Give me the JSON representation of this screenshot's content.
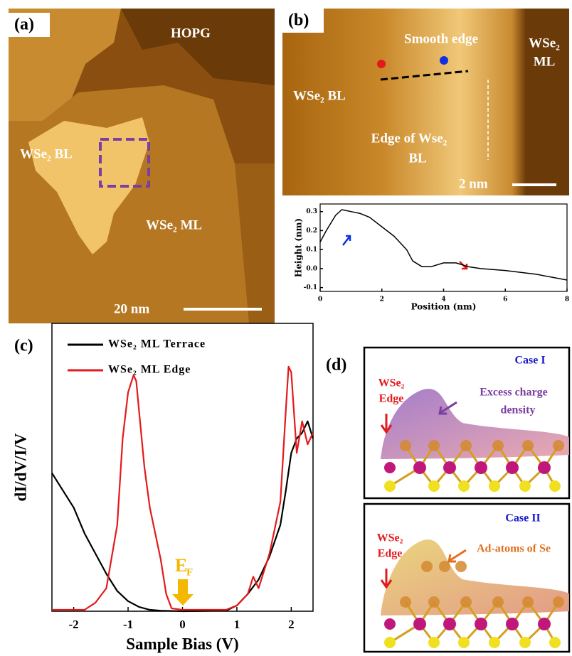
{
  "panel_a": {
    "label": "(a)",
    "hopg": "HOPG",
    "bilayer": "WSe₂ BL",
    "monolayer": "WSe₂ ML",
    "scale_bar": "20 nm"
  },
  "panel_b": {
    "label": "(b)",
    "smooth_edge": "Smooth edge",
    "monolayer": [
      "WSe₂",
      "ML"
    ],
    "bilayer": "WSe₂ BL",
    "edge": [
      "Edge of Wse₂",
      "BL"
    ],
    "scale_bar": "2 nm"
  },
  "chart_data": [
    {
      "type": "line",
      "xlabel": "Position (nm)",
      "ylabel": "Height (nm)",
      "color": "#000000",
      "x": [
        0,
        0.2,
        0.5,
        0.7,
        1.0,
        1.3,
        1.6,
        2.0,
        2.4,
        2.8,
        3.0,
        3.3,
        3.6,
        4.0,
        4.4,
        4.8,
        5.2,
        6.0,
        7.0,
        8.0
      ],
      "values": [
        0.14,
        0.2,
        0.28,
        0.31,
        0.3,
        0.29,
        0.27,
        0.22,
        0.17,
        0.1,
        0.04,
        0.01,
        0.01,
        0.03,
        0.03,
        0.01,
        0.0,
        -0.01,
        -0.03,
        -0.06
      ],
      "xlim": [
        0,
        8
      ],
      "xticks": [
        0,
        2,
        4,
        6,
        8
      ],
      "ylim": [
        -0.12,
        0.34
      ],
      "yticks": [
        -0.1,
        {
          "value": 0,
          "label": "0.0"
        },
        0.1,
        0.2,
        0.3
      ]
    },
    {
      "type": "line",
      "panel_label": "(c)",
      "xlabel": "Sample Bias (V)",
      "ylabel": "dI/dV/I/V",
      "xlim": [
        -2.4,
        2.4
      ],
      "xticks": [
        -2,
        -1,
        0,
        1,
        2
      ],
      "ylim": [
        0,
        1
      ],
      "annotation": {
        "text": "E",
        "subscript": "F"
      },
      "series": [
        {
          "name": "WSe₂ ML Terrace",
          "color": "#000000",
          "x": [
            -2.4,
            -2.2,
            -2.0,
            -1.8,
            -1.6,
            -1.4,
            -1.2,
            -1.0,
            -0.8,
            -0.6,
            -0.4,
            0,
            0.8,
            1.0,
            1.2,
            1.4,
            1.6,
            1.8,
            1.9,
            2.0,
            2.1,
            2.2,
            2.3,
            2.4
          ],
          "values": [
            0.48,
            0.42,
            0.36,
            0.27,
            0.2,
            0.13,
            0.07,
            0.035,
            0.015,
            0.005,
            0.002,
            0,
            0.002,
            0.02,
            0.06,
            0.11,
            0.19,
            0.3,
            0.42,
            0.55,
            0.6,
            0.62,
            0.66,
            0.6
          ]
        },
        {
          "name": "WSe₂ ML Edge",
          "color": "#e31a1c",
          "x": [
            -2.4,
            -1.8,
            -1.6,
            -1.4,
            -1.2,
            -1.1,
            -1.0,
            -0.9,
            -0.85,
            -0.8,
            -0.7,
            -0.6,
            -0.4,
            -0.3,
            -0.2,
            0,
            0.8,
            1.0,
            1.2,
            1.3,
            1.4,
            1.6,
            1.8,
            1.9,
            1.95,
            2.0,
            2.1,
            2.2,
            2.3,
            2.4
          ],
          "values": [
            0.005,
            0.005,
            0.03,
            0.08,
            0.3,
            0.6,
            0.76,
            0.82,
            0.8,
            0.7,
            0.5,
            0.36,
            0.18,
            0.06,
            0.01,
            0.005,
            0.005,
            0.02,
            0.06,
            0.12,
            0.08,
            0.2,
            0.38,
            0.7,
            0.85,
            0.83,
            0.55,
            0.66,
            0.58,
            0.62
          ]
        }
      ]
    }
  ],
  "panel_d": {
    "label": "(d)",
    "case1": {
      "title": "Case I",
      "edge": [
        "WSe₂",
        "Edge"
      ],
      "note": [
        "Excess charge",
        "density"
      ]
    },
    "case2": {
      "title": "Case II",
      "edge": [
        "WSe₂",
        "Edge"
      ],
      "note": "Ad-atoms of Se"
    }
  }
}
